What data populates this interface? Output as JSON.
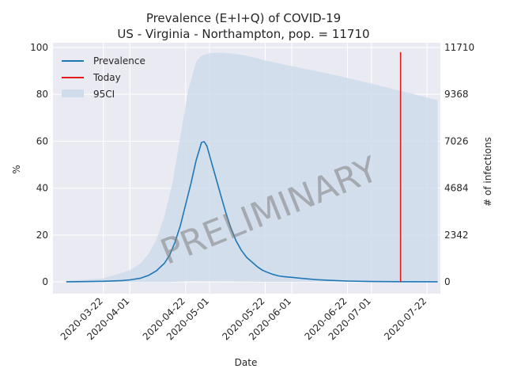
{
  "chart_data": {
    "type": "line",
    "title_line1": "Prevalence (E+I+Q) of COVID-19",
    "title_line2": "US - Virginia - Northampton, pop. = 11710",
    "xlabel": "Date",
    "ylabel": "%",
    "ylabel_right": "# of infections",
    "ylim": [
      -5,
      102
    ],
    "y_ticks": [
      "0",
      "20",
      "40",
      "60",
      "80",
      "100"
    ],
    "y_tick_values": [
      0,
      20,
      40,
      60,
      80,
      100
    ],
    "y_right_ticks": [
      "0",
      "2342",
      "4684",
      "7026",
      "9368",
      "11710"
    ],
    "x_range": [
      "2020-03-03",
      "2020-07-27"
    ],
    "x_ticks": [
      "2020-03-22",
      "2020-04-01",
      "2020-04-22",
      "2020-05-01",
      "2020-05-22",
      "2020-06-01",
      "2020-06-22",
      "2020-07-01",
      "2020-07-22"
    ],
    "watermark": "PRELIMINARY",
    "legend": {
      "placement": "upper-left",
      "items": [
        "Prevalence",
        "Today",
        "95CI"
      ]
    },
    "colors": {
      "prevalence": "#1f77b4",
      "today": "#e41a1c",
      "ci_fill": "#cfdcec",
      "plot_bg": "#eaeaf2",
      "grid": "#ffffff"
    },
    "today": {
      "date": "2020-07-12",
      "y_top": 98
    },
    "series": [
      {
        "name": "Prevalence",
        "points": [
          [
            "2020-03-08",
            0.1
          ],
          [
            "2020-03-15",
            0.15
          ],
          [
            "2020-03-22",
            0.3
          ],
          [
            "2020-03-29",
            0.6
          ],
          [
            "2020-04-01",
            0.9
          ],
          [
            "2020-04-05",
            1.6
          ],
          [
            "2020-04-08",
            2.8
          ],
          [
            "2020-04-11",
            4.8
          ],
          [
            "2020-04-14",
            8.0
          ],
          [
            "2020-04-16",
            11.5
          ],
          [
            "2020-04-18",
            17
          ],
          [
            "2020-04-20",
            24
          ],
          [
            "2020-04-22",
            33
          ],
          [
            "2020-04-24",
            42
          ],
          [
            "2020-04-26",
            52
          ],
          [
            "2020-04-28",
            59.5
          ],
          [
            "2020-04-29",
            59.8
          ],
          [
            "2020-04-30",
            58
          ],
          [
            "2020-05-01",
            54
          ],
          [
            "2020-05-03",
            46
          ],
          [
            "2020-05-05",
            38
          ],
          [
            "2020-05-07",
            30
          ],
          [
            "2020-05-09",
            23
          ],
          [
            "2020-05-11",
            17.5
          ],
          [
            "2020-05-13",
            13.5
          ],
          [
            "2020-05-15",
            10.5
          ],
          [
            "2020-05-17",
            8.5
          ],
          [
            "2020-05-19",
            6.5
          ],
          [
            "2020-05-21",
            5.0
          ],
          [
            "2020-05-23",
            4.0
          ],
          [
            "2020-05-25",
            3.2
          ],
          [
            "2020-05-27",
            2.6
          ],
          [
            "2020-05-29",
            2.3
          ],
          [
            "2020-06-01",
            2.0
          ],
          [
            "2020-06-05",
            1.5
          ],
          [
            "2020-06-10",
            1.0
          ],
          [
            "2020-06-15",
            0.7
          ],
          [
            "2020-06-22",
            0.4
          ],
          [
            "2020-07-01",
            0.2
          ],
          [
            "2020-07-12",
            0.12
          ],
          [
            "2020-07-26",
            0.1
          ]
        ]
      }
    ],
    "ci": {
      "name": "95CI",
      "upper": [
        [
          "2020-03-08",
          0.5
        ],
        [
          "2020-03-22",
          1.5
        ],
        [
          "2020-04-01",
          5
        ],
        [
          "2020-04-05",
          8
        ],
        [
          "2020-04-08",
          12
        ],
        [
          "2020-04-11",
          18
        ],
        [
          "2020-04-14",
          28
        ],
        [
          "2020-04-17",
          42
        ],
        [
          "2020-04-20",
          62
        ],
        [
          "2020-04-23",
          82
        ],
        [
          "2020-04-26",
          94
        ],
        [
          "2020-04-28",
          96.5
        ],
        [
          "2020-05-01",
          97.5
        ],
        [
          "2020-05-05",
          97.8
        ],
        [
          "2020-05-10",
          97.3
        ],
        [
          "2020-05-15",
          96.5
        ],
        [
          "2020-05-22",
          94.5
        ],
        [
          "2020-06-01",
          92
        ],
        [
          "2020-06-10",
          90
        ],
        [
          "2020-06-22",
          87
        ],
        [
          "2020-07-01",
          84.5
        ],
        [
          "2020-07-12",
          81.5
        ],
        [
          "2020-07-26",
          77.5
        ]
      ],
      "lower": [
        [
          "2020-03-08",
          0
        ],
        [
          "2020-04-15",
          0
        ],
        [
          "2020-04-25",
          0.3
        ],
        [
          "2020-05-10",
          0.2
        ],
        [
          "2020-05-25",
          0.05
        ],
        [
          "2020-07-26",
          0
        ]
      ]
    }
  }
}
